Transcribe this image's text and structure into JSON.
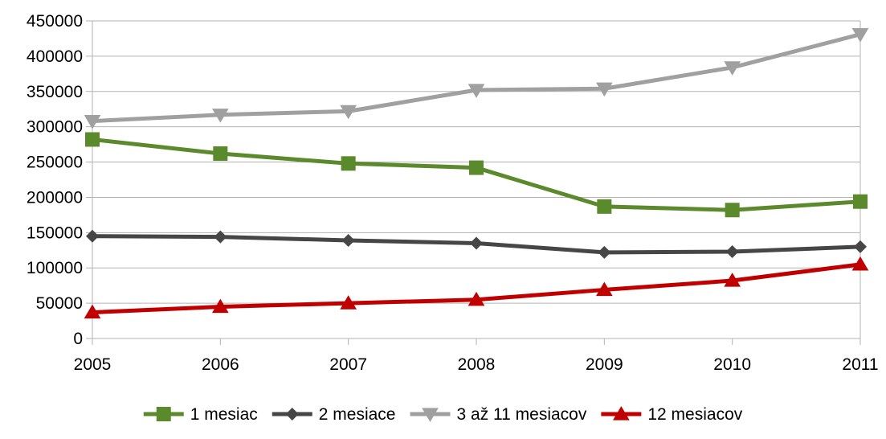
{
  "chart_data": {
    "type": "line",
    "title": "",
    "xlabel": "",
    "ylabel": "",
    "categories": [
      "2005",
      "2006",
      "2007",
      "2008",
      "2009",
      "2010",
      "2011"
    ],
    "ylim": [
      0,
      450000
    ],
    "yticks": [
      0,
      50000,
      100000,
      150000,
      200000,
      250000,
      300000,
      350000,
      400000,
      450000
    ],
    "ytick_labels": [
      "0",
      "50000",
      "100000",
      "150000",
      "200000",
      "250000",
      "300000",
      "350000",
      "400000",
      "450000"
    ],
    "grid": "horizontal",
    "legend_position": "bottom",
    "series": [
      {
        "name": "1 mesiac",
        "color": "#5a8a2b",
        "marker": "square",
        "values": [
          282000,
          262000,
          248000,
          242000,
          187000,
          182000,
          194000
        ]
      },
      {
        "name": "2 mesiace",
        "color": "#464646",
        "marker": "diamond",
        "values": [
          145000,
          144000,
          139000,
          135000,
          122000,
          123000,
          130000
        ]
      },
      {
        "name": "3 až 11 mesiacov",
        "color": "#a0a0a0",
        "marker": "triangle-down",
        "values": [
          308000,
          317000,
          322000,
          352000,
          354000,
          384000,
          431000
        ]
      },
      {
        "name": "12 mesiacov",
        "color": "#c00000",
        "marker": "triangle-up",
        "values": [
          37000,
          45000,
          50000,
          55000,
          69000,
          82000,
          105000
        ]
      }
    ]
  }
}
